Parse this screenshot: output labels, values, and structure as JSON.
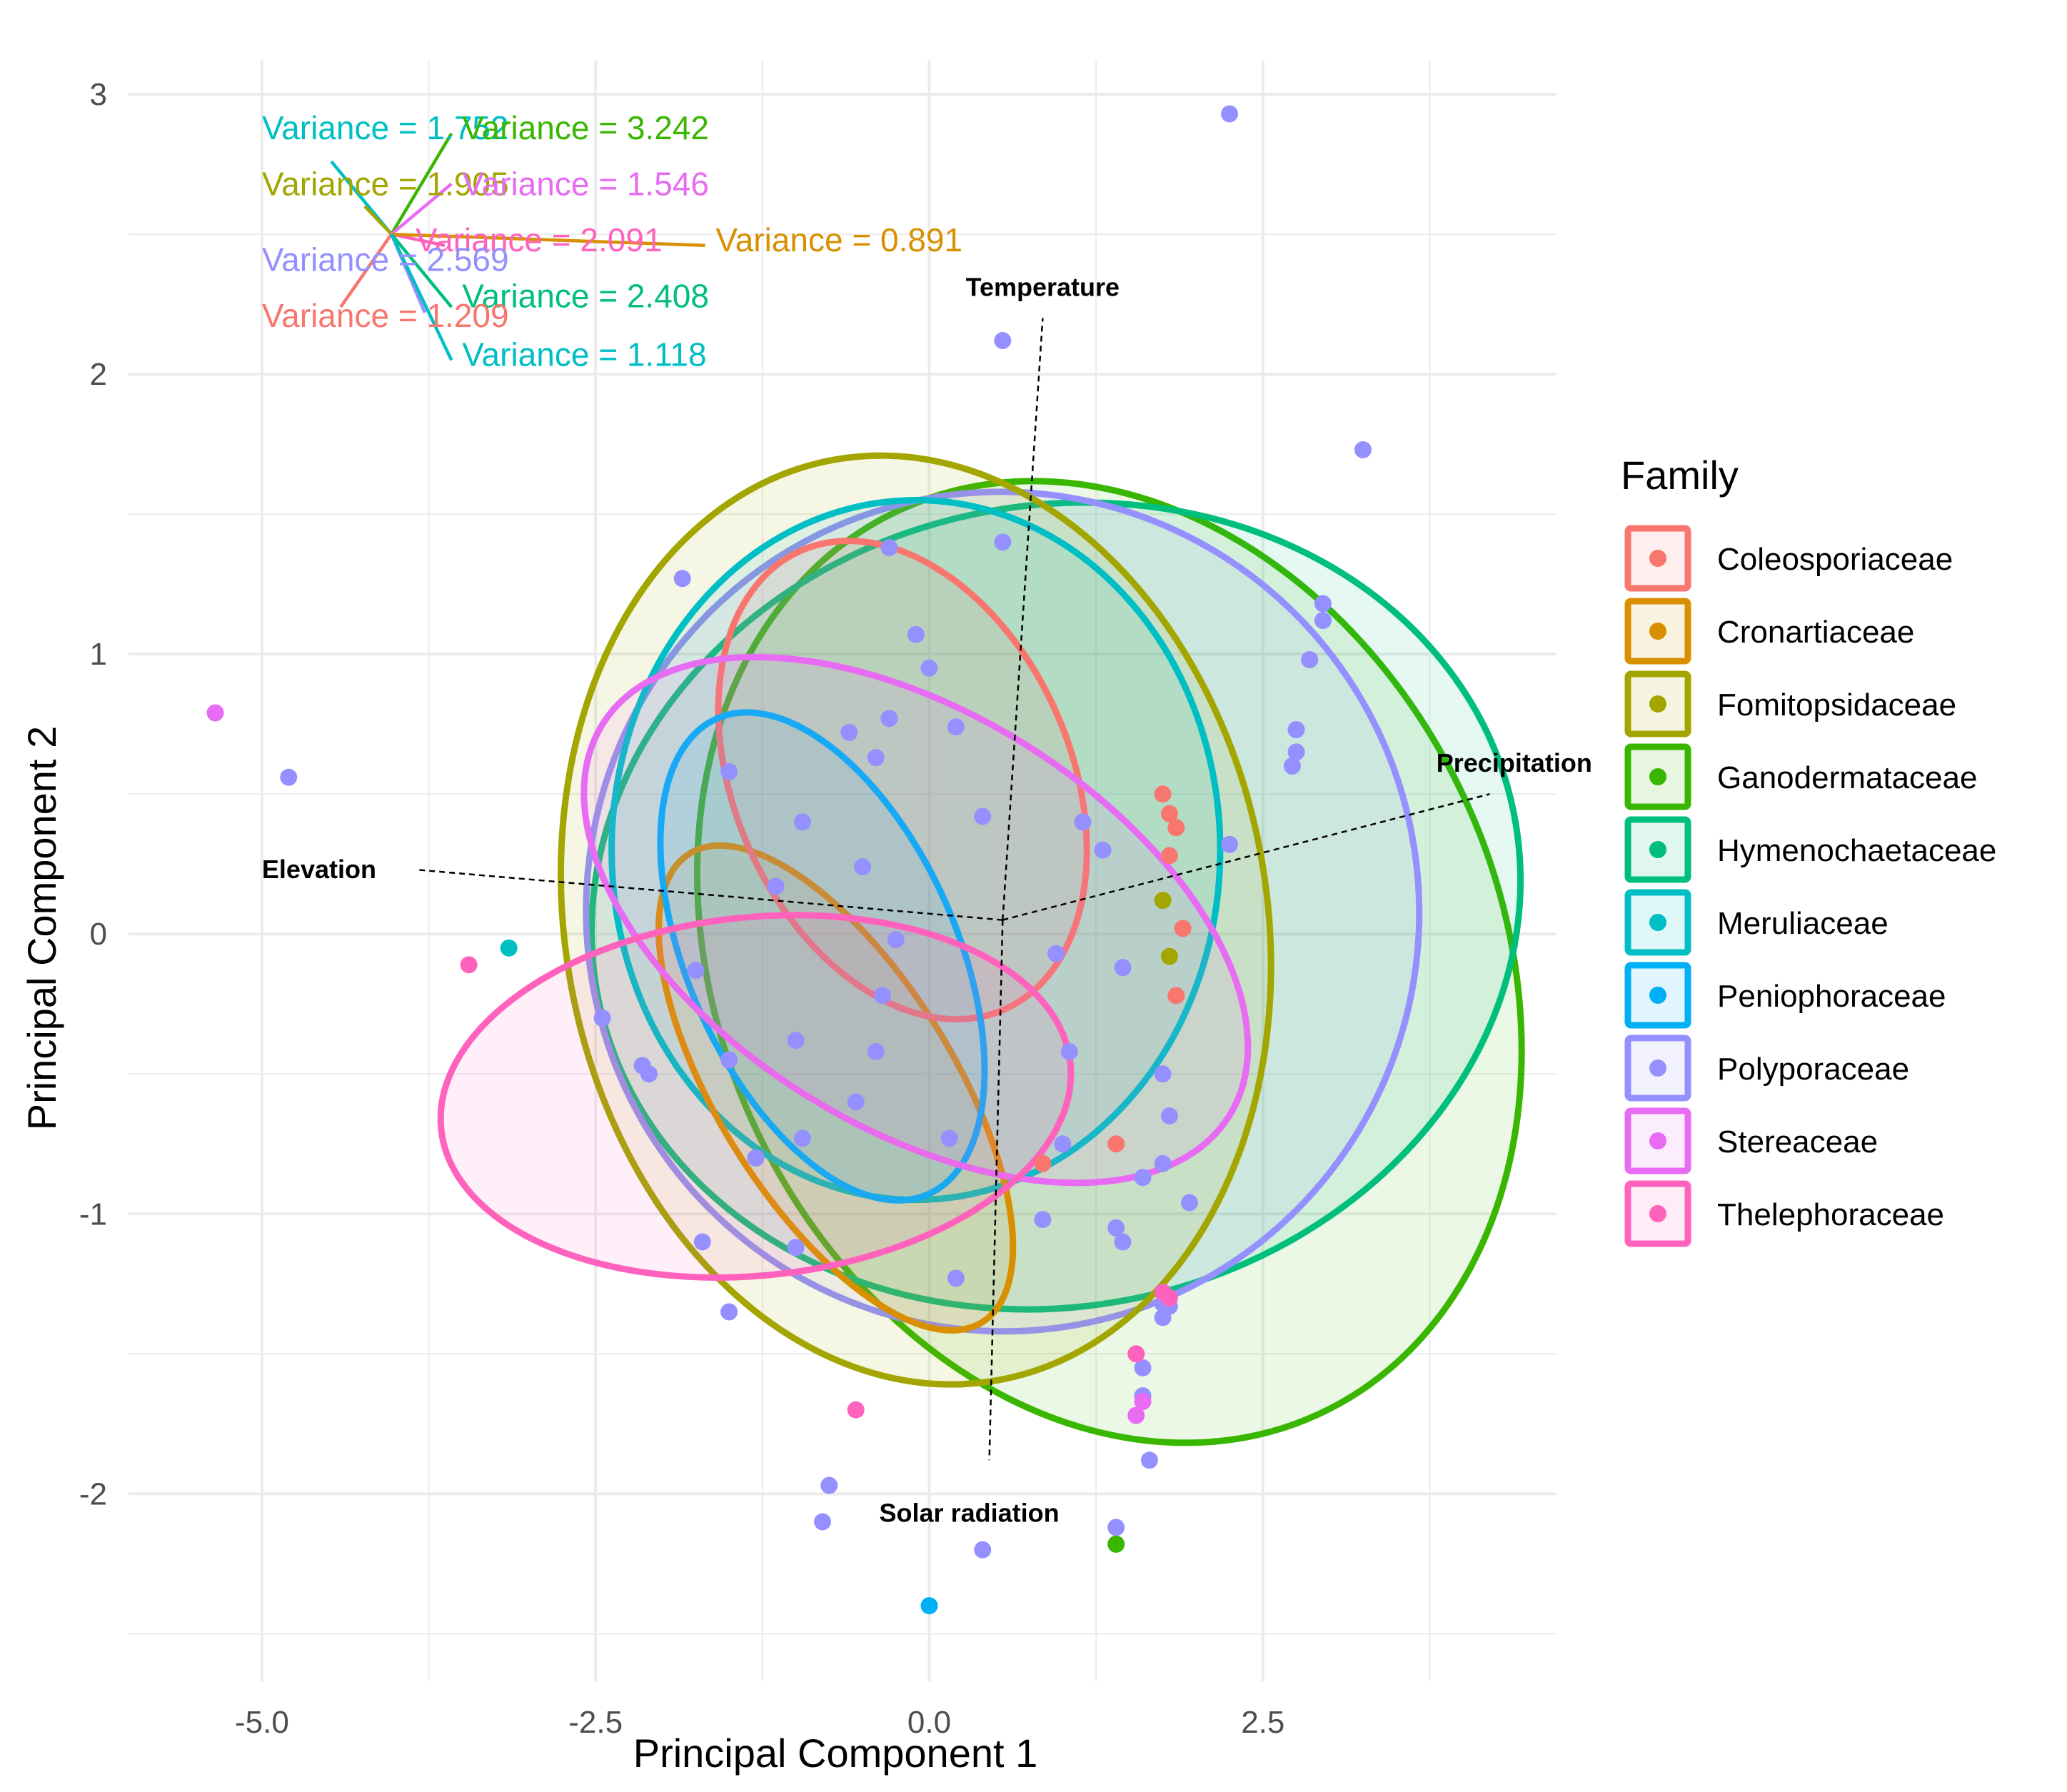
{
  "chart_data": {
    "type": "scatter",
    "xlabel": "Principal Component 1",
    "ylabel": "Principal Component 2",
    "xlim": [
      -6.0,
      4.7
    ],
    "ylim": [
      -2.67,
      3.12
    ],
    "xticks": [
      -5.0,
      -2.5,
      0.0,
      2.5
    ],
    "xtick_labels": [
      "-5.0",
      "-2.5",
      "0.0",
      "2.5"
    ],
    "yticks": [
      -2,
      -1,
      0,
      1,
      2,
      3
    ],
    "ytick_labels": [
      "-2",
      "-1",
      "0",
      "1",
      "2",
      "3"
    ],
    "grid": true,
    "legend": {
      "title": "Family",
      "position": "right",
      "entries": [
        "Coleosporiaceae",
        "Cronartiaceae",
        "Fomitopsidaceae",
        "Ganodermataceae",
        "Hymenochaetaceae",
        "Meruliaceae",
        "Peniophoraceae",
        "Polyporaceae",
        "Stereaceae",
        "Thelephoraceae"
      ]
    },
    "colors": {
      "Coleosporiaceae": "#F8766D",
      "Cronartiaceae": "#D89000",
      "Fomitopsidaceae": "#A3A500",
      "Ganodermataceae": "#39B600",
      "Hymenochaetaceae": "#00BF7D",
      "Meruliaceae": "#00BFC4",
      "Peniophoraceae": "#00B0F6",
      "Polyporaceae": "#9590FF",
      "Stereaceae": "#E76BF3",
      "Thelephoraceae": "#FF62BC"
    },
    "ellipses": [
      {
        "family": "Ganodermataceae",
        "cx": 1.35,
        "cy": -0.1,
        "rx": 2.93,
        "ry": 1.78,
        "angle": -25
      },
      {
        "family": "Hymenochaetaceae",
        "cx": 0.95,
        "cy": 0.1,
        "rx": 3.5,
        "ry": 1.43,
        "angle": -12
      },
      {
        "family": "Polyporaceae",
        "cx": 0.55,
        "cy": 0.08,
        "rx": 3.12,
        "ry": 1.5,
        "angle": -12
      },
      {
        "family": "Fomitopsidaceae",
        "cx": -0.1,
        "cy": 0.05,
        "rx": 2.63,
        "ry": 1.67,
        "angle": -10
      },
      {
        "family": "Meruliaceae",
        "cx": -0.1,
        "cy": 0.3,
        "rx": 2.28,
        "ry": 1.25,
        "angle": 0
      },
      {
        "family": "Cronartiaceae",
        "cx": -0.7,
        "cy": -0.55,
        "rx": 2.07,
        "ry": 0.42,
        "angle": 58
      },
      {
        "family": "Coleosporiaceae",
        "cx": -0.2,
        "cy": 0.55,
        "rx": 1.88,
        "ry": 0.6,
        "angle": 66
      },
      {
        "family": "Peniophoraceae",
        "cx": -0.8,
        "cy": -0.08,
        "rx": 1.95,
        "ry": 0.48,
        "angle": 66
      },
      {
        "family": "Stereaceae",
        "cx": -0.1,
        "cy": 0.05,
        "rx": 1.55,
        "ry": 1.32,
        "angle": -58
      },
      {
        "family": "Thelephoraceae",
        "cx": -1.3,
        "cy": -0.58,
        "rx": 2.37,
        "ry": 0.64,
        "angle": -6
      }
    ],
    "points": [
      {
        "family": "Polyporaceae",
        "x": 2.25,
        "y": 2.93
      },
      {
        "family": "Polyporaceae",
        "x": 0.55,
        "y": 2.12
      },
      {
        "family": "Polyporaceae",
        "x": 3.25,
        "y": 1.73
      },
      {
        "family": "Polyporaceae",
        "x": 2.95,
        "y": 1.18
      },
      {
        "family": "Polyporaceae",
        "x": 2.95,
        "y": 1.12
      },
      {
        "family": "Polyporaceae",
        "x": 2.85,
        "y": 0.98
      },
      {
        "family": "Polyporaceae",
        "x": 2.75,
        "y": 0.73
      },
      {
        "family": "Polyporaceae",
        "x": 2.75,
        "y": 0.65
      },
      {
        "family": "Polyporaceae",
        "x": 2.72,
        "y": 0.6
      },
      {
        "family": "Polyporaceae",
        "x": 2.25,
        "y": 0.32
      },
      {
        "family": "Polyporaceae",
        "x": 0.55,
        "y": 1.4
      },
      {
        "family": "Polyporaceae",
        "x": -0.3,
        "y": 1.38
      },
      {
        "family": "Polyporaceae",
        "x": -1.85,
        "y": 1.27
      },
      {
        "family": "Polyporaceae",
        "x": -0.1,
        "y": 1.07
      },
      {
        "family": "Polyporaceae",
        "x": 0.0,
        "y": 0.95
      },
      {
        "family": "Polyporaceae",
        "x": -0.3,
        "y": 0.77
      },
      {
        "family": "Polyporaceae",
        "x": 0.2,
        "y": 0.74
      },
      {
        "family": "Polyporaceae",
        "x": -0.6,
        "y": 0.72
      },
      {
        "family": "Polyporaceae",
        "x": -0.4,
        "y": 0.63
      },
      {
        "family": "Polyporaceae",
        "x": -1.5,
        "y": 0.58
      },
      {
        "family": "Polyporaceae",
        "x": -0.95,
        "y": 0.4
      },
      {
        "family": "Polyporaceae",
        "x": 0.4,
        "y": 0.42
      },
      {
        "family": "Polyporaceae",
        "x": 1.15,
        "y": 0.4
      },
      {
        "family": "Polyporaceae",
        "x": 1.3,
        "y": 0.3
      },
      {
        "family": "Polyporaceae",
        "x": -0.5,
        "y": 0.24
      },
      {
        "family": "Polyporaceae",
        "x": -1.15,
        "y": 0.17
      },
      {
        "family": "Polyporaceae",
        "x": -0.25,
        "y": -0.02
      },
      {
        "family": "Polyporaceae",
        "x": 0.95,
        "y": -0.07
      },
      {
        "family": "Polyporaceae",
        "x": 1.45,
        "y": -0.12
      },
      {
        "family": "Polyporaceae",
        "x": -1.75,
        "y": -0.13
      },
      {
        "family": "Polyporaceae",
        "x": -0.35,
        "y": -0.22
      },
      {
        "family": "Polyporaceae",
        "x": -2.45,
        "y": -0.3
      },
      {
        "family": "Polyporaceae",
        "x": -1.0,
        "y": -0.38
      },
      {
        "family": "Polyporaceae",
        "x": -0.4,
        "y": -0.42
      },
      {
        "family": "Polyporaceae",
        "x": -1.5,
        "y": -0.45
      },
      {
        "family": "Polyporaceae",
        "x": -2.15,
        "y": -0.47
      },
      {
        "family": "Polyporaceae",
        "x": -2.1,
        "y": -0.5
      },
      {
        "family": "Polyporaceae",
        "x": -0.55,
        "y": -0.6
      },
      {
        "family": "Polyporaceae",
        "x": 1.05,
        "y": -0.42
      },
      {
        "family": "Polyporaceae",
        "x": 1.75,
        "y": -0.5
      },
      {
        "family": "Polyporaceae",
        "x": 1.8,
        "y": -0.65
      },
      {
        "family": "Polyporaceae",
        "x": 0.15,
        "y": -0.73
      },
      {
        "family": "Polyporaceae",
        "x": -0.95,
        "y": -0.73
      },
      {
        "family": "Polyporaceae",
        "x": -1.3,
        "y": -0.8
      },
      {
        "family": "Polyporaceae",
        "x": 1.0,
        "y": -0.75
      },
      {
        "family": "Polyporaceae",
        "x": 1.75,
        "y": -0.82
      },
      {
        "family": "Polyporaceae",
        "x": 1.6,
        "y": -0.87
      },
      {
        "family": "Polyporaceae",
        "x": 1.95,
        "y": -0.96
      },
      {
        "family": "Polyporaceae",
        "x": 0.85,
        "y": -1.02
      },
      {
        "family": "Polyporaceae",
        "x": 1.4,
        "y": -1.05
      },
      {
        "family": "Polyporaceae",
        "x": 1.45,
        "y": -1.1
      },
      {
        "family": "Polyporaceae",
        "x": -1.7,
        "y": -1.1
      },
      {
        "family": "Polyporaceae",
        "x": -1.0,
        "y": -1.12
      },
      {
        "family": "Polyporaceae",
        "x": 0.2,
        "y": -1.23
      },
      {
        "family": "Polyporaceae",
        "x": 1.75,
        "y": -1.32
      },
      {
        "family": "Polyporaceae",
        "x": 1.75,
        "y": -1.37
      },
      {
        "family": "Polyporaceae",
        "x": 1.8,
        "y": -1.33
      },
      {
        "family": "Polyporaceae",
        "x": -1.5,
        "y": -1.35
      },
      {
        "family": "Polyporaceae",
        "x": 1.6,
        "y": -1.55
      },
      {
        "family": "Polyporaceae",
        "x": 1.6,
        "y": -1.65
      },
      {
        "family": "Polyporaceae",
        "x": 1.65,
        "y": -1.88
      },
      {
        "family": "Polyporaceae",
        "x": -0.75,
        "y": -1.97
      },
      {
        "family": "Polyporaceae",
        "x": -0.8,
        "y": -2.1
      },
      {
        "family": "Polyporaceae",
        "x": 1.4,
        "y": -2.12
      },
      {
        "family": "Polyporaceae",
        "x": 0.4,
        "y": -2.2
      },
      {
        "family": "Polyporaceae",
        "x": -4.8,
        "y": 0.56
      },
      {
        "family": "Stereaceae",
        "x": -5.35,
        "y": 0.79
      },
      {
        "family": "Stereaceae",
        "x": 1.55,
        "y": -1.72
      },
      {
        "family": "Stereaceae",
        "x": 1.6,
        "y": -1.67
      },
      {
        "family": "Thelephoraceae",
        "x": -3.45,
        "y": -0.11
      },
      {
        "family": "Thelephoraceae",
        "x": -0.55,
        "y": -1.7
      },
      {
        "family": "Thelephoraceae",
        "x": 1.55,
        "y": -1.5
      },
      {
        "family": "Thelephoraceae",
        "x": 1.75,
        "y": -1.28
      },
      {
        "family": "Thelephoraceae",
        "x": 1.8,
        "y": -1.3
      },
      {
        "family": "Coleosporiaceae",
        "x": 1.8,
        "y": 0.43
      },
      {
        "family": "Coleosporiaceae",
        "x": 1.85,
        "y": 0.38
      },
      {
        "family": "Coleosporiaceae",
        "x": 1.75,
        "y": 0.5
      },
      {
        "family": "Coleosporiaceae",
        "x": 1.8,
        "y": 0.28
      },
      {
        "family": "Coleosporiaceae",
        "x": 1.9,
        "y": 0.02
      },
      {
        "family": "Coleosporiaceae",
        "x": 1.85,
        "y": -0.22
      },
      {
        "family": "Coleosporiaceae",
        "x": 1.4,
        "y": -0.75
      },
      {
        "family": "Coleosporiaceae",
        "x": 0.85,
        "y": -0.82
      },
      {
        "family": "Fomitopsidaceae",
        "x": 1.75,
        "y": 0.12
      },
      {
        "family": "Fomitopsidaceae",
        "x": 1.8,
        "y": -0.08
      },
      {
        "family": "Ganodermataceae",
        "x": 1.4,
        "y": -2.18
      },
      {
        "family": "Meruliaceae",
        "x": -3.15,
        "y": -0.05
      },
      {
        "family": "Peniophoraceae",
        "x": 0.0,
        "y": -2.4
      }
    ],
    "loadings": [
      {
        "name": "Temperature",
        "x": 0.85,
        "y": 2.2
      },
      {
        "name": "Precipitation",
        "x": 4.2,
        "y": 0.5
      },
      {
        "name": "Elevation",
        "x": -3.85,
        "y": 0.23
      },
      {
        "name": "Solar radiation",
        "x": 0.45,
        "y": -1.88
      }
    ],
    "loading_labels": {
      "Temperature": "Temperature",
      "Precipitation": "Precipitation",
      "Elevation": "Elevation",
      "Solar radiation": "Solar radiation"
    },
    "variance_star": {
      "origin": {
        "x": -4.03,
        "y": 2.5
      },
      "rays": [
        {
          "label": "Variance = 1.752",
          "color": "#00BFC4",
          "dx": -0.45,
          "dy": 0.26
        },
        {
          "label": "Variance = 3.242",
          "color": "#39B600",
          "dx": 0.45,
          "dy": 0.36
        },
        {
          "label": "Variance = 1.905",
          "color": "#A3A500",
          "dx": -0.2,
          "dy": 0.1
        },
        {
          "label": "Variance = 1.546",
          "color": "#E76BF3",
          "dx": 0.45,
          "dy": 0.18
        },
        {
          "label": "Variance = 2.091",
          "color": "#FF62BC",
          "dx": 0.4,
          "dy": -0.04
        },
        {
          "label": "Variance = 0.891",
          "color": "#D89000",
          "dx": 2.35,
          "dy": -0.04
        },
        {
          "label": "Variance = 2.569",
          "color": "#9590FF",
          "dx": 0.25,
          "dy": -0.28
        },
        {
          "label": "Variance = 2.408",
          "color": "#00BF7D",
          "dx": 0.45,
          "dy": -0.26
        },
        {
          "label": "Variance = 1.209",
          "color": "#F8766D",
          "dx": -0.38,
          "dy": -0.26
        },
        {
          "label": "Variance = 1.118",
          "color": "#00BFC4",
          "dx": 0.45,
          "dy": -0.45
        }
      ],
      "labels": [
        {
          "text": "Variance = 1.752",
          "color": "#00BFC4",
          "x": -5.0,
          "y": 2.88
        },
        {
          "text": "Variance = 3.242",
          "color": "#39B600",
          "x": -3.5,
          "y": 2.88
        },
        {
          "text": "Variance = 1.905",
          "color": "#A3A500",
          "x": -5.0,
          "y": 2.68
        },
        {
          "text": "Variance = 1.546",
          "color": "#E76BF3",
          "x": -3.5,
          "y": 2.68
        },
        {
          "text": "Variance = 2.091",
          "color": "#FF62BC",
          "x": -3.85,
          "y": 2.48
        },
        {
          "text": "Variance = 0.891",
          "color": "#D89000",
          "x": -1.6,
          "y": 2.48
        },
        {
          "text": "Variance = 2.569",
          "color": "#9590FF",
          "x": -5.0,
          "y": 2.41
        },
        {
          "text": "Variance = 2.408",
          "color": "#00BF7D",
          "x": -3.5,
          "y": 2.28
        },
        {
          "text": "Variance = 1.209",
          "color": "#F8766D",
          "x": -5.0,
          "y": 2.21
        },
        {
          "text": "Variance = 1.118",
          "color": "#00BFC4",
          "x": -3.5,
          "y": 2.07
        }
      ]
    }
  }
}
